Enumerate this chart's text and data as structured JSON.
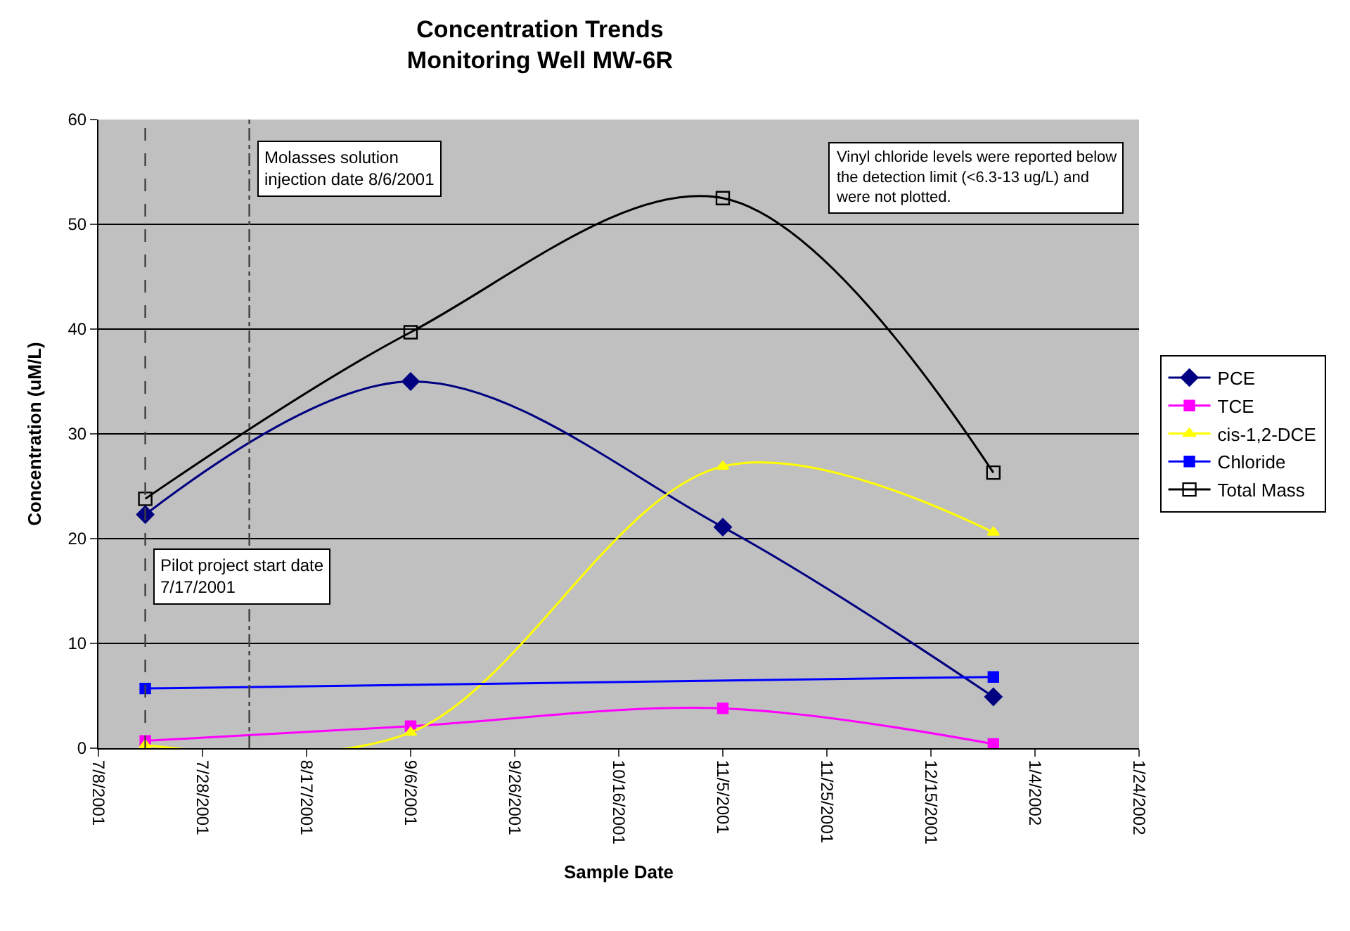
{
  "chart_data": {
    "type": "line",
    "title": "Concentration Trends\nMonitoring Well MW-6R",
    "xlabel": "Sample Date",
    "ylabel": "Concentration (uM/L)",
    "x": [
      "2001-07-17",
      "2001-09-06",
      "2001-11-05",
      "2001-12-27"
    ],
    "series": [
      {
        "name": "PCE",
        "color": "#000080",
        "marker": "diamond",
        "values": [
          22.3,
          35.0,
          21.1,
          4.9
        ]
      },
      {
        "name": "TCE",
        "color": "#ff00ff",
        "marker": "square",
        "values": [
          0.7,
          2.1,
          3.8,
          0.4
        ]
      },
      {
        "name": "cis-1,2-DCE",
        "color": "#ffff00",
        "marker": "triangle",
        "values": [
          0.3,
          1.5,
          26.9,
          20.6
        ]
      },
      {
        "name": "Chloride",
        "color": "#0000ff",
        "marker": "square",
        "x": [
          "2001-07-17",
          "2001-12-27"
        ],
        "values": [
          5.7,
          6.8
        ]
      },
      {
        "name": "Total Mass",
        "color": "#000000",
        "marker": "square-open",
        "values": [
          23.8,
          39.7,
          52.5,
          26.3
        ]
      }
    ],
    "xlim": [
      "2001-07-08",
      "2002-01-24"
    ],
    "xticks": [
      {
        "value": "2001-07-08",
        "label": "7/8/2001"
      },
      {
        "value": "2001-07-28",
        "label": "7/28/2001"
      },
      {
        "value": "2001-08-17",
        "label": "8/17/2001"
      },
      {
        "value": "2001-09-06",
        "label": "9/6/2001"
      },
      {
        "value": "2001-09-26",
        "label": "9/26/2001"
      },
      {
        "value": "2001-10-16",
        "label": "10/16/2001"
      },
      {
        "value": "2001-11-05",
        "label": "11/5/2001"
      },
      {
        "value": "2001-11-25",
        "label": "11/25/2001"
      },
      {
        "value": "2001-12-15",
        "label": "12/15/2001"
      },
      {
        "value": "2002-01-04",
        "label": "1/4/2002"
      },
      {
        "value": "2002-01-24",
        "label": "1/24/2002"
      }
    ],
    "ylim": [
      0,
      60
    ],
    "yticks": [
      0,
      10,
      20,
      30,
      40,
      50,
      60
    ],
    "ref_lines": [
      {
        "axis": "x",
        "value": "2001-07-17",
        "label": "Pilot project start date\n7/17/2001",
        "color": "#404040",
        "line_style": "dashed"
      },
      {
        "axis": "x",
        "value": "2001-08-06",
        "label": "Molasses solution\ninjection date 8/6/2001",
        "color": "#404040",
        "line_style": "dashdot"
      }
    ],
    "annotations": [
      "Vinyl chloride levels were reported below\nthe detection limit (<6.3-13 ug/L) and\nwere not plotted."
    ],
    "grid": "y",
    "legend": "right",
    "line_style": "solid"
  }
}
